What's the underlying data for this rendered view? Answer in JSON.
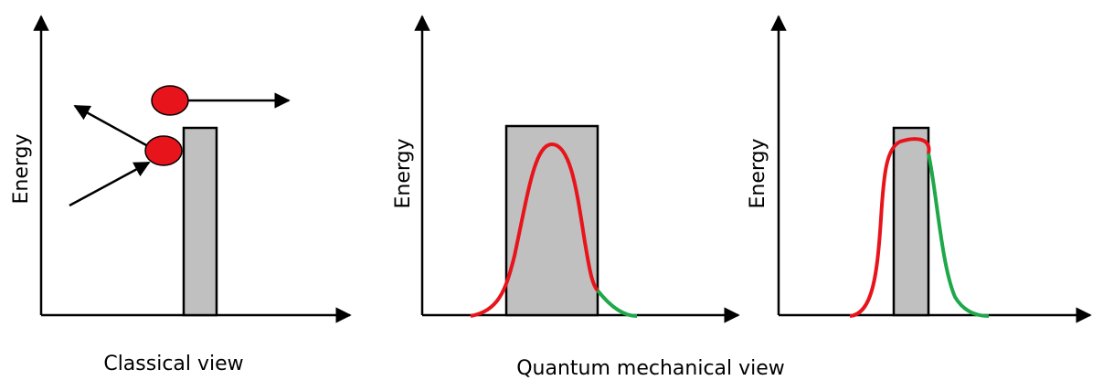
{
  "panels": [
    {
      "axis_label": "Energy"
    },
    {
      "axis_label": "Energy"
    },
    {
      "axis_label": "Energy"
    }
  ],
  "captions": [
    "Classical view",
    "Quantum mechanical view"
  ]
}
